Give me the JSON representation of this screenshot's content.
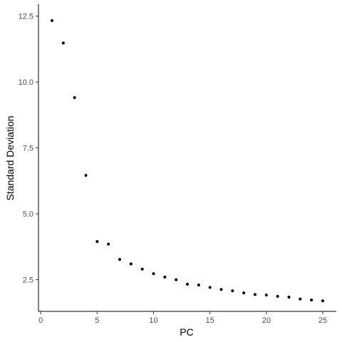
{
  "chart_data": {
    "type": "scatter",
    "title": "",
    "xlabel": "PC",
    "ylabel": "Standard Deviation",
    "xlim": [
      -0.2,
      26.2
    ],
    "ylim": [
      1.3,
      12.95
    ],
    "xticks": [
      0,
      5,
      10,
      15,
      20,
      25
    ],
    "yticks": [
      2.5,
      5.0,
      7.5,
      10.0,
      12.5
    ],
    "ytick_labels": [
      "2.5",
      "5.0",
      "7.5",
      "10.0",
      "12.5"
    ],
    "grid": false,
    "point_color": "#000000",
    "x": [
      1,
      2,
      3,
      4,
      5,
      6,
      7,
      8,
      9,
      10,
      11,
      12,
      13,
      14,
      15,
      16,
      17,
      18,
      19,
      20,
      21,
      22,
      23,
      24,
      25
    ],
    "y": [
      12.33,
      11.48,
      9.41,
      6.46,
      3.95,
      3.85,
      3.27,
      3.1,
      2.9,
      2.73,
      2.6,
      2.5,
      2.33,
      2.3,
      2.21,
      2.13,
      2.08,
      2.0,
      1.94,
      1.92,
      1.87,
      1.84,
      1.77,
      1.73,
      1.7
    ]
  }
}
